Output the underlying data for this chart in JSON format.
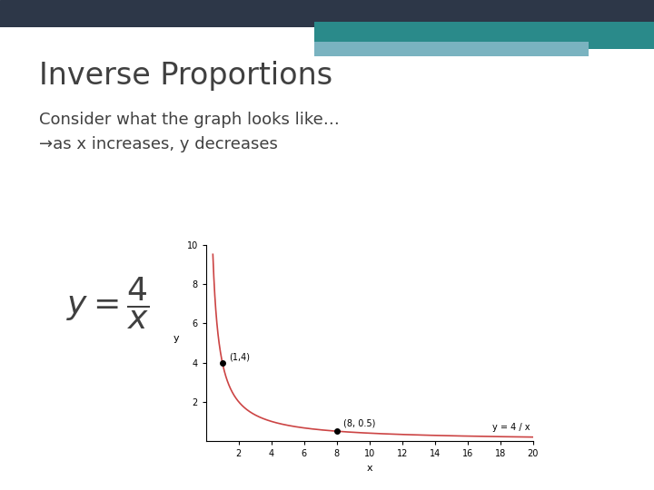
{
  "title": "Inverse Proportions",
  "subtitle_line1": "Consider what the graph looks like…",
  "subtitle_line2": "→as x increases, y decreases",
  "x_label": "x",
  "y_label": "y",
  "x_min": 0,
  "x_max": 20,
  "y_min": 0,
  "y_max": 10,
  "x_ticks": [
    2,
    4,
    6,
    8,
    10,
    12,
    14,
    16,
    18,
    20
  ],
  "y_ticks": [
    2,
    4,
    6,
    8,
    10
  ],
  "point1": [
    1,
    4
  ],
  "point1_label": "(1,4)",
  "point2": [
    8,
    0.5
  ],
  "point2_label": "(8, 0.5)",
  "curve_color": "#cc4444",
  "point_color": "#000000",
  "bg_color": "#ffffff",
  "title_color": "#404040",
  "subtitle_color": "#404040",
  "header_dark_color": "#2d3748",
  "header_teal_color": "#2a8a8a",
  "header_light_color": "#7ab3c0",
  "equation_label": "y = 4 / x"
}
